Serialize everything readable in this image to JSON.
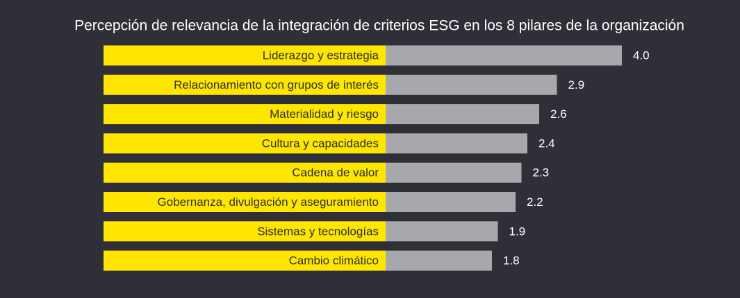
{
  "chart_data": {
    "type": "bar",
    "orientation": "horizontal",
    "title": "Percepción de relevancia de la integración de criterios ESG en los 8 pilares de la organización",
    "categories": [
      "Liderazgo y estrategia",
      "Relacionamiento con grupos de interés",
      "Materialidad y riesgo",
      "Cultura y capacidades",
      "Cadena de valor",
      "Gobernanza, divulgación y aseguramiento",
      "Sistemas y tecnologías",
      "Cambio climático"
    ],
    "values": [
      4.0,
      2.9,
      2.6,
      2.4,
      2.3,
      2.2,
      1.9,
      1.8
    ],
    "value_labels": [
      "4.0",
      "2.9",
      "2.6",
      "2.4",
      "2.3",
      "2.2",
      "1.9",
      "1.8"
    ],
    "color": "#a8a7ac",
    "label_color": "#ffe600"
  }
}
